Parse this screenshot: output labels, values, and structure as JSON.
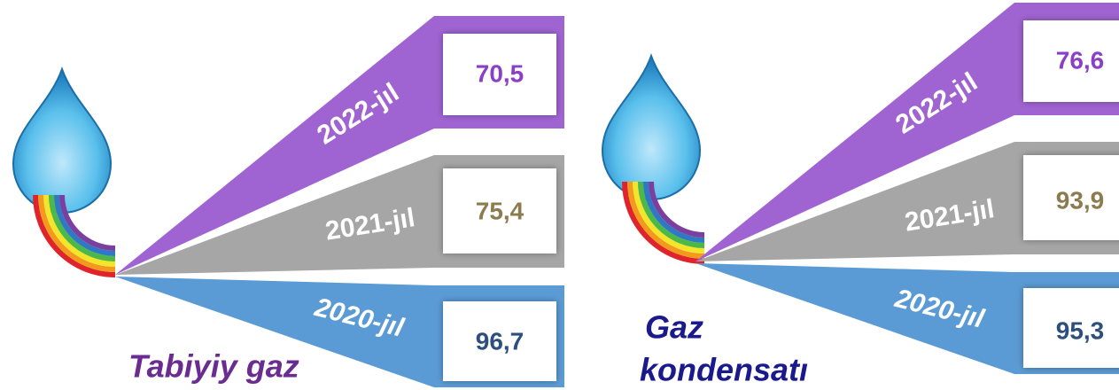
{
  "panels": [
    {
      "title": "Tabiyiy gaz",
      "items": [
        {
          "year": "2022-jıl",
          "value": "70,5"
        },
        {
          "year": "2021-jıl",
          "value": "75,4"
        },
        {
          "year": "2020-jıl",
          "value": "96,7"
        }
      ]
    },
    {
      "title_lines": [
        "Gaz",
        "kondensatı"
      ],
      "items": [
        {
          "year": "2022-jıl",
          "value": "76,6"
        },
        {
          "year": "2021-jıl",
          "value": "93,9"
        },
        {
          "year": "2020-jıl",
          "value": "95,3"
        }
      ]
    }
  ]
}
